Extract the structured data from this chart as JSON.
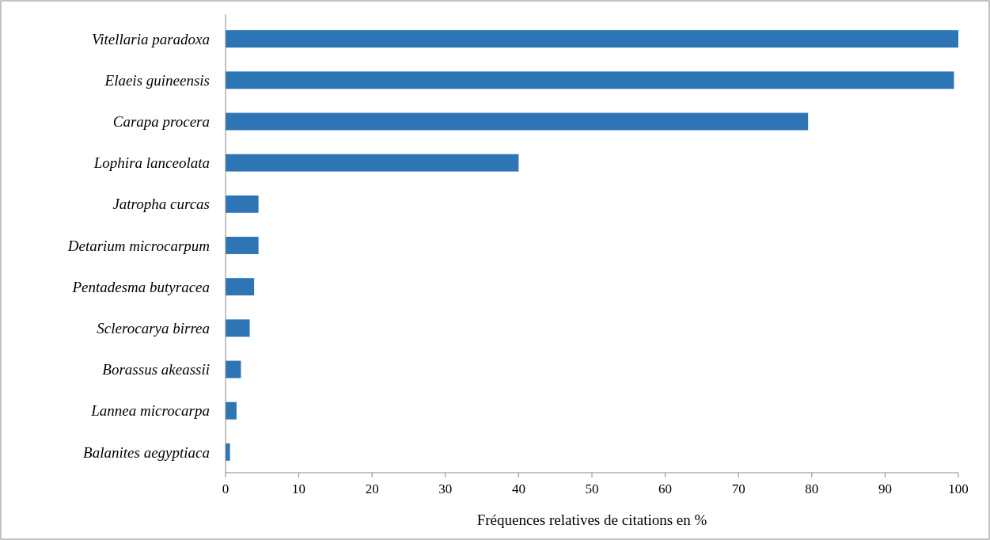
{
  "chart_data": {
    "type": "bar",
    "orientation": "horizontal",
    "xlabel": "Fréquences  relatives de citations en %",
    "categories": [
      "Vitellaria paradoxa",
      "Elaeis guineensis",
      "Carapa procera",
      "Lophira lanceolata",
      "Jatropha curcas",
      "Detarium microcarpum",
      "Pentadesma butyracea",
      "Sclerocarya birrea",
      "Borassus akeassii",
      "Lannea microcarpa",
      "Balanites aegyptiaca"
    ],
    "values": [
      100,
      99.4,
      79.5,
      40,
      4.5,
      4.5,
      3.9,
      3.3,
      2.1,
      1.5,
      0.6
    ],
    "color": "#2e75b6",
    "xlim": [
      0,
      100
    ],
    "xticks": [
      0,
      10,
      20,
      30,
      40,
      50,
      60,
      70,
      80,
      90,
      100
    ],
    "grid": false
  }
}
